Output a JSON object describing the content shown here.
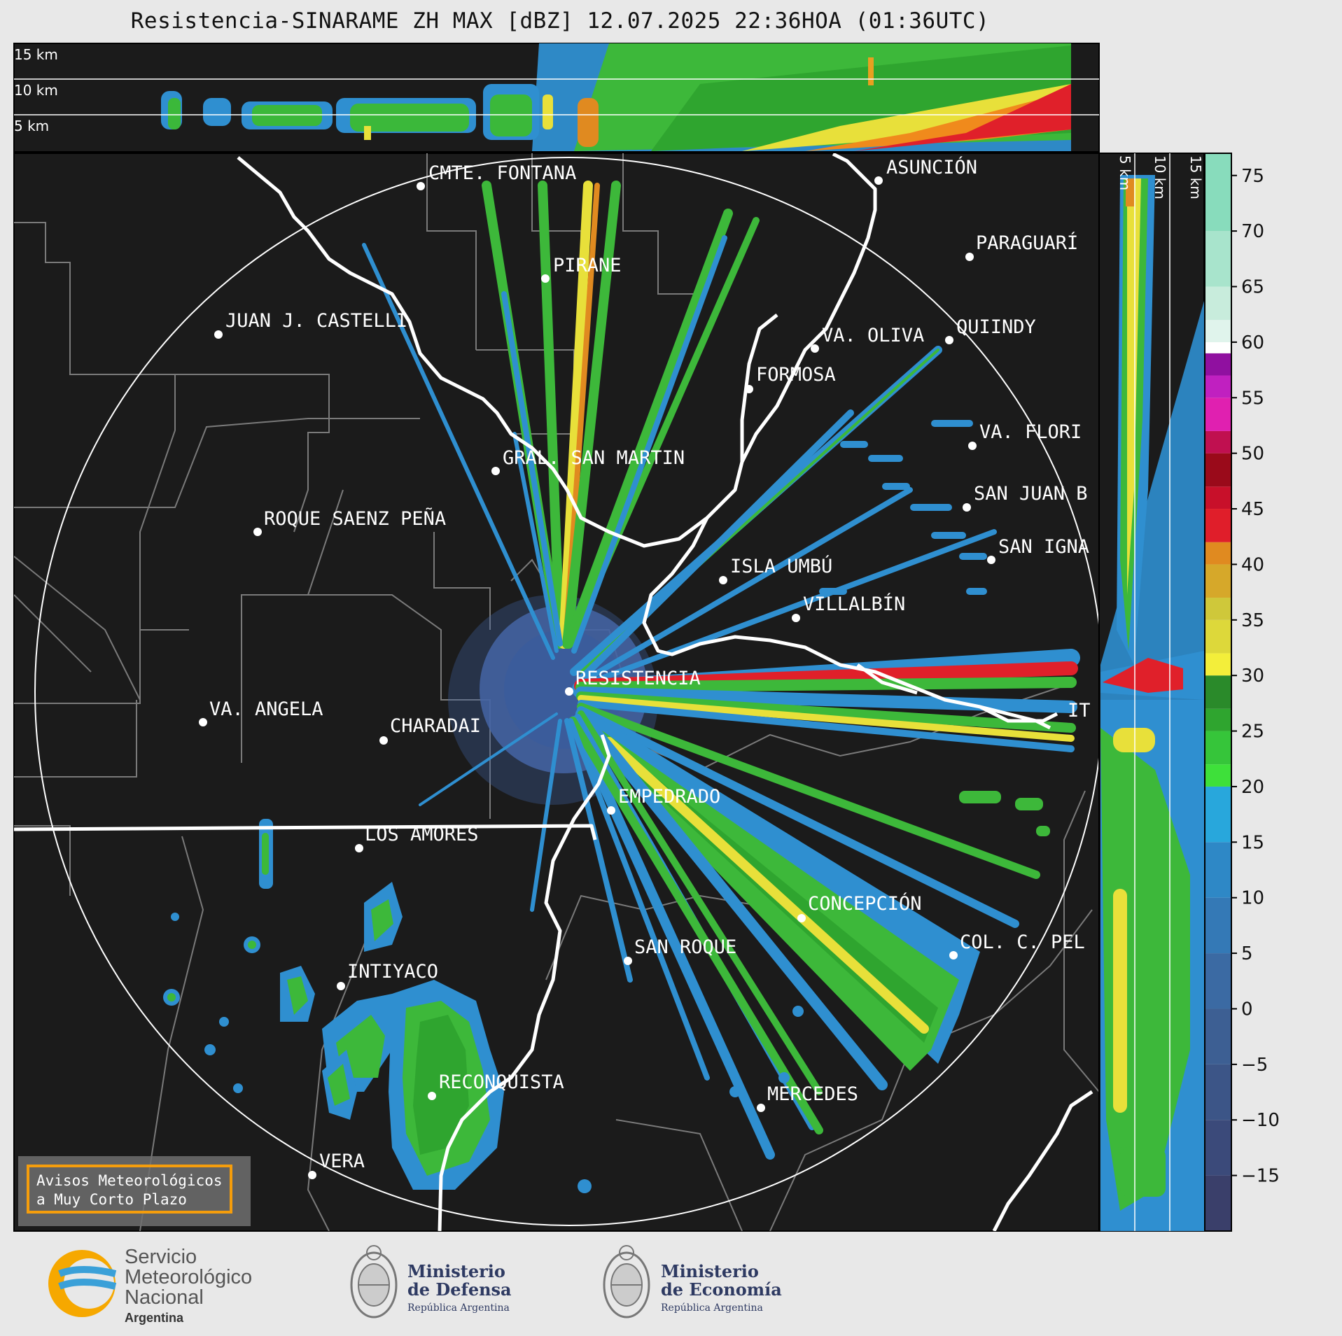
{
  "title": "Resistencia-SINARAME ZH MAX [dBZ] 12.07.2025 22:36HOA (01:36UTC)",
  "top_panel": {
    "altitudes": [
      "15 km",
      "10 km",
      "5 km"
    ]
  },
  "right_panel": {
    "altitudes": [
      "5 km",
      "10 km",
      "15 km"
    ]
  },
  "cities": [
    {
      "name": "CMTE. FONTANA"
    },
    {
      "name": "ASUNCIÓN"
    },
    {
      "name": "PARAGUARÍ"
    },
    {
      "name": "PIRANE"
    },
    {
      "name": "JUAN J. CASTELLI"
    },
    {
      "name": "VA. OLIVA"
    },
    {
      "name": "QUIINDY"
    },
    {
      "name": "FORMOSA"
    },
    {
      "name": "VA. FLORI"
    },
    {
      "name": "GRAL. SAN MARTIN"
    },
    {
      "name": "SAN JUAN B"
    },
    {
      "name": "ROQUE SAENZ PEÑA"
    },
    {
      "name": "SAN IGNA"
    },
    {
      "name": "ISLA UMBÚ"
    },
    {
      "name": "VILLALBÍN"
    },
    {
      "name": "RESISTENCIA"
    },
    {
      "name": "VA. ANGELA"
    },
    {
      "name": "CHARADAI"
    },
    {
      "name": "IT"
    },
    {
      "name": "EMPEDRADO"
    },
    {
      "name": "LOS AMORES"
    },
    {
      "name": "CONCEPCIÓN"
    },
    {
      "name": "COL. C. PEL"
    },
    {
      "name": "SAN ROQUE"
    },
    {
      "name": "INTIYACO"
    },
    {
      "name": "RECONQUISTA"
    },
    {
      "name": "MERCEDES"
    },
    {
      "name": "VERA"
    }
  ],
  "colorbar": {
    "ticks": [
      "75",
      "70",
      "65",
      "60",
      "55",
      "50",
      "45",
      "40",
      "35",
      "30",
      "25",
      "20",
      "15",
      "10",
      "5",
      "0",
      "−5",
      "−10",
      "−15"
    ],
    "unit": "dBZ"
  },
  "alert_box": {
    "line1": "Avisos Meteorológicos",
    "line2": "a Muy Corto Plazo"
  },
  "logos": {
    "smn": {
      "line1": "Servicio",
      "line2": "Meteorológico",
      "line3": "Nacional",
      "line4": "Argentina"
    },
    "defensa": {
      "line1": "Ministerio",
      "line2": "de Defensa",
      "line3": "República Argentina"
    },
    "economia": {
      "line1": "Ministerio",
      "line2": "de Economía",
      "line3": "República Argentina"
    }
  }
}
